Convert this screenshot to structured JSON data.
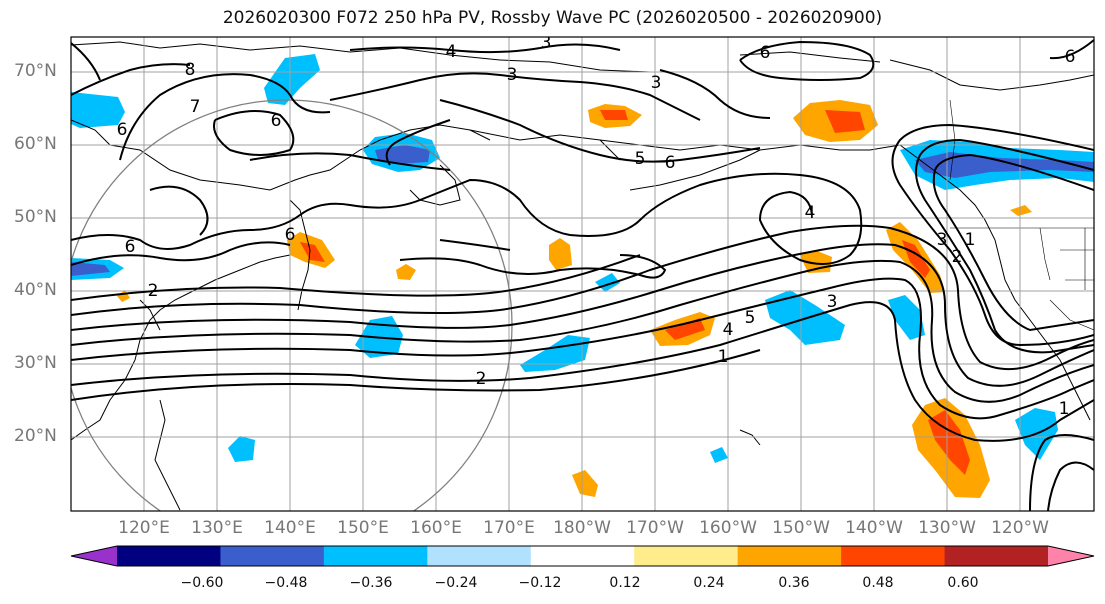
{
  "title": "2026020300 F072 250 hPa PV, Rossby Wave PC (2026020500 - 2026020900)",
  "lat_labels": [
    "70°N",
    "60°N",
    "50°N",
    "40°N",
    "30°N",
    "20°N"
  ],
  "lon_labels": [
    "120°E",
    "130°E",
    "140°E",
    "150°E",
    "160°E",
    "170°E",
    "180°W",
    "170°W",
    "160°W",
    "150°W",
    "140°W",
    "130°W",
    "120°W"
  ],
  "colorbar": {
    "colors": [
      "#9932cc",
      "#000080",
      "#3a5fcd",
      "#00bfff",
      "#b0e2ff",
      "#ffffff",
      "#ffec8b",
      "#ffa500",
      "#ff4500",
      "#b22222",
      "#ff82ab"
    ],
    "ticks": [
      "−0.60",
      "−0.48",
      "−0.36",
      "−0.24",
      "−0.12",
      "0.12",
      "0.24",
      "0.36",
      "0.48",
      "0.60"
    ]
  },
  "contour_labels": [
    "4",
    "3",
    "6",
    "6",
    "8",
    "7",
    "6",
    "3",
    "6",
    "5",
    "6",
    "3",
    "6",
    "4",
    "6",
    "3",
    "2",
    "1",
    "2",
    "4",
    "5",
    "3",
    "1",
    "1",
    "2"
  ]
}
